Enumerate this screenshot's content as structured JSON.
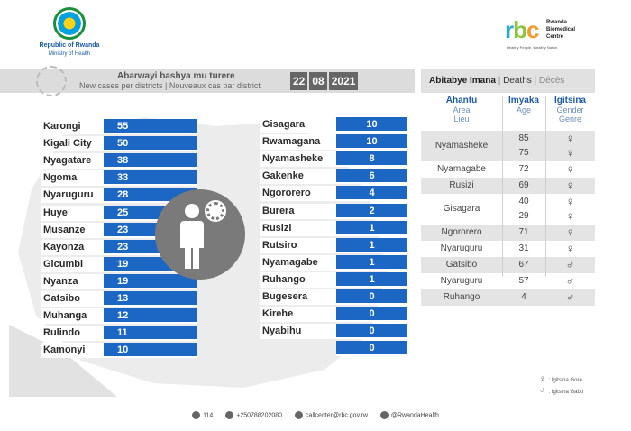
{
  "header": {
    "gov_line1": "Republic of Rwanda",
    "gov_line2": "Ministry of Health",
    "rbc_letters": [
      "r",
      "b",
      "c"
    ],
    "rbc_name": [
      "Rwanda",
      "Biomedical",
      "Centre"
    ],
    "rbc_tagline": "Healthy People, Wealthy Nation"
  },
  "banner": {
    "title_kin": "Abarwayi bashya mu turere",
    "title_en_fr": "New cases per districts  |  Nouveaux cas par district",
    "date_day": "22",
    "date_month": "08",
    "date_year": "2021"
  },
  "districts_left": [
    {
      "name": "Karongi",
      "cases": "55"
    },
    {
      "name": "Kigali City",
      "cases": "50"
    },
    {
      "name": "Nyagatare",
      "cases": "38"
    },
    {
      "name": "Ngoma",
      "cases": "33"
    },
    {
      "name": "Nyaruguru",
      "cases": "28"
    },
    {
      "name": "Huye",
      "cases": "25"
    },
    {
      "name": "Musanze",
      "cases": "23"
    },
    {
      "name": "Kayonza",
      "cases": "23"
    },
    {
      "name": "Gicumbi",
      "cases": "19"
    },
    {
      "name": "Nyanza",
      "cases": "19"
    },
    {
      "name": "Gatsibo",
      "cases": "13"
    },
    {
      "name": "Muhanga",
      "cases": "12"
    },
    {
      "name": "Rulindo",
      "cases": "11"
    },
    {
      "name": "Kamonyi",
      "cases": "10"
    }
  ],
  "districts_right": [
    {
      "name": "Gisagara",
      "cases": "10"
    },
    {
      "name": "Rwamagana",
      "cases": "10"
    },
    {
      "name": "Nyamasheke",
      "cases": "8"
    },
    {
      "name": "Gakenke",
      "cases": "6"
    },
    {
      "name": "Ngororero",
      "cases": "4"
    },
    {
      "name": "Burera",
      "cases": "2"
    },
    {
      "name": "Rusizi",
      "cases": "1"
    },
    {
      "name": "Rutsiro",
      "cases": "1"
    },
    {
      "name": "Nyamagabe",
      "cases": "1"
    },
    {
      "name": "Ruhango",
      "cases": "1"
    },
    {
      "name": "Bugesera",
      "cases": "0"
    },
    {
      "name": "Kirehe",
      "cases": "0"
    },
    {
      "name": "Nyabihu",
      "cases": "0"
    },
    {
      "name": "",
      "cases": "0"
    }
  ],
  "deaths": {
    "header_kin": "Abitabye Imana",
    "header_en": "Deaths",
    "header_fr": "Décès",
    "col_area": [
      "Ahantu",
      "Area",
      "Lieu"
    ],
    "col_age": [
      "Imyaka",
      "Age"
    ],
    "col_sex": [
      "Igitsina",
      "Gender",
      "Genre"
    ],
    "records": [
      {
        "area": "Nyamasheke",
        "ages": [
          "85",
          "75"
        ],
        "sex": [
          "♀",
          "♀"
        ]
      },
      {
        "area": "Nyamagabe",
        "ages": [
          "72"
        ],
        "sex": [
          "♀"
        ]
      },
      {
        "area": "Rusizi",
        "ages": [
          "69"
        ],
        "sex": [
          "♀"
        ]
      },
      {
        "area": "Gisagara",
        "ages": [
          "40",
          "29"
        ],
        "sex": [
          "♀",
          "♀"
        ]
      },
      {
        "area": "Ngororero",
        "ages": [
          "71"
        ],
        "sex": [
          "♀"
        ]
      },
      {
        "area": "Nyaruguru",
        "ages": [
          "31"
        ],
        "sex": [
          "♀"
        ]
      },
      {
        "area": "Gatsibo",
        "ages": [
          "67"
        ],
        "sex": [
          "♂"
        ]
      },
      {
        "area": "Nyaruguru",
        "ages": [
          "57"
        ],
        "sex": [
          "♂"
        ]
      },
      {
        "area": "Ruhango",
        "ages": [
          "4"
        ],
        "sex": [
          "♂"
        ]
      }
    ],
    "legend_female": ": Igitsina Gore",
    "legend_male": ": Igitsina Gabo",
    "female_symbol": "♀",
    "male_symbol": "♂"
  },
  "footer": {
    "hotline": "114",
    "phone": "+250788202080",
    "email": "callcenter@rbc.gov.rw",
    "social": "@RwandaHealth"
  }
}
